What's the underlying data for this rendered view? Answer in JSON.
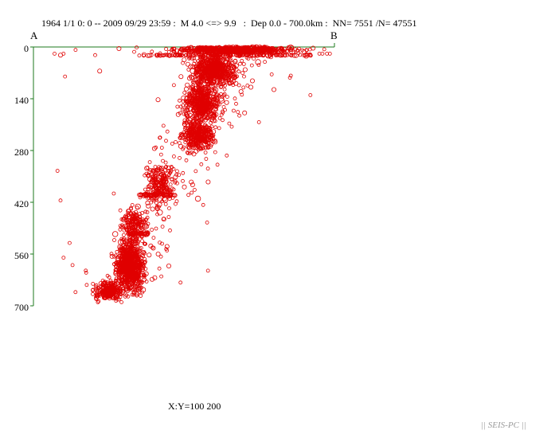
{
  "header": {
    "title": "1964 1/1 0: 0 -- 2009 09/29 23:59 :  M 4.0 <=> 9.9   :  Dep 0.0 - 700.0km :  NN= 7551 /N= 47551"
  },
  "section": {
    "start_label": "A",
    "end_label": "B"
  },
  "footer": {
    "scale_text": "X:Y=100 200",
    "brand": "|| SEIS-PC ||"
  },
  "colors": {
    "axis": "#1e7a1e",
    "marker": "#e00000",
    "brand": "#9a9a9a"
  },
  "chart_data": {
    "type": "scatter",
    "title": "1964 1/1 0: 0 -- 2009 09/29 23:59 :  M 4.0 <=> 9.9   :  Dep 0.0 - 700.0km :  NN= 7551 /N= 47551",
    "ylabel": "",
    "ylim": [
      0,
      700
    ],
    "y_inverted": true,
    "yticks": [
      0,
      140,
      280,
      420,
      560,
      700
    ],
    "ytick_labels": [
      "0",
      "140",
      "280",
      "420",
      "560",
      "700"
    ],
    "x_units": "distance along profile A-B (approx. km)",
    "xlim": [
      0,
      1000
    ],
    "marker": "open circle",
    "total_events_shown": 7551,
    "density_clusters": [
      {
        "x_center": 660,
        "depth_center": 8,
        "x_spread": 170,
        "depth_spread": 8,
        "count": 700
      },
      {
        "x_center": 600,
        "depth_center": 60,
        "x_spread": 60,
        "depth_spread": 40,
        "count": 650
      },
      {
        "x_center": 560,
        "depth_center": 150,
        "x_spread": 50,
        "depth_spread": 50,
        "count": 500
      },
      {
        "x_center": 545,
        "depth_center": 240,
        "x_spread": 45,
        "depth_spread": 35,
        "count": 320
      },
      {
        "x_center": 420,
        "depth_center": 370,
        "x_spread": 45,
        "depth_spread": 45,
        "count": 200
      },
      {
        "x_center": 335,
        "depth_center": 480,
        "x_spread": 35,
        "depth_spread": 35,
        "count": 180
      },
      {
        "x_center": 320,
        "depth_center": 590,
        "x_spread": 40,
        "depth_spread": 60,
        "count": 750
      },
      {
        "x_center": 250,
        "depth_center": 660,
        "x_spread": 40,
        "depth_spread": 20,
        "count": 250
      }
    ],
    "depth_bands": [
      {
        "x_from": 350,
        "x_to": 930,
        "depth": 22,
        "count": 140
      },
      {
        "x_from": 350,
        "x_to": 470,
        "depth": 400,
        "count": 60
      },
      {
        "x_from": 310,
        "x_to": 380,
        "depth": 505,
        "count": 40
      }
    ],
    "outliers": [
      {
        "x": 70,
        "depth": 18
      },
      {
        "x": 90,
        "depth": 22
      },
      {
        "x": 100,
        "depth": 18
      },
      {
        "x": 140,
        "depth": 8
      },
      {
        "x": 105,
        "depth": 80
      },
      {
        "x": 205,
        "depth": 22
      },
      {
        "x": 220,
        "depth": 65
      },
      {
        "x": 80,
        "depth": 335
      },
      {
        "x": 90,
        "depth": 415
      },
      {
        "x": 920,
        "depth": 130
      },
      {
        "x": 950,
        "depth": 18
      },
      {
        "x": 960,
        "depth": 18
      },
      {
        "x": 975,
        "depth": 18
      },
      {
        "x": 985,
        "depth": 18
      },
      {
        "x": 580,
        "depth": 605
      },
      {
        "x": 100,
        "depth": 570
      },
      {
        "x": 120,
        "depth": 530
      },
      {
        "x": 130,
        "depth": 590
      }
    ]
  }
}
